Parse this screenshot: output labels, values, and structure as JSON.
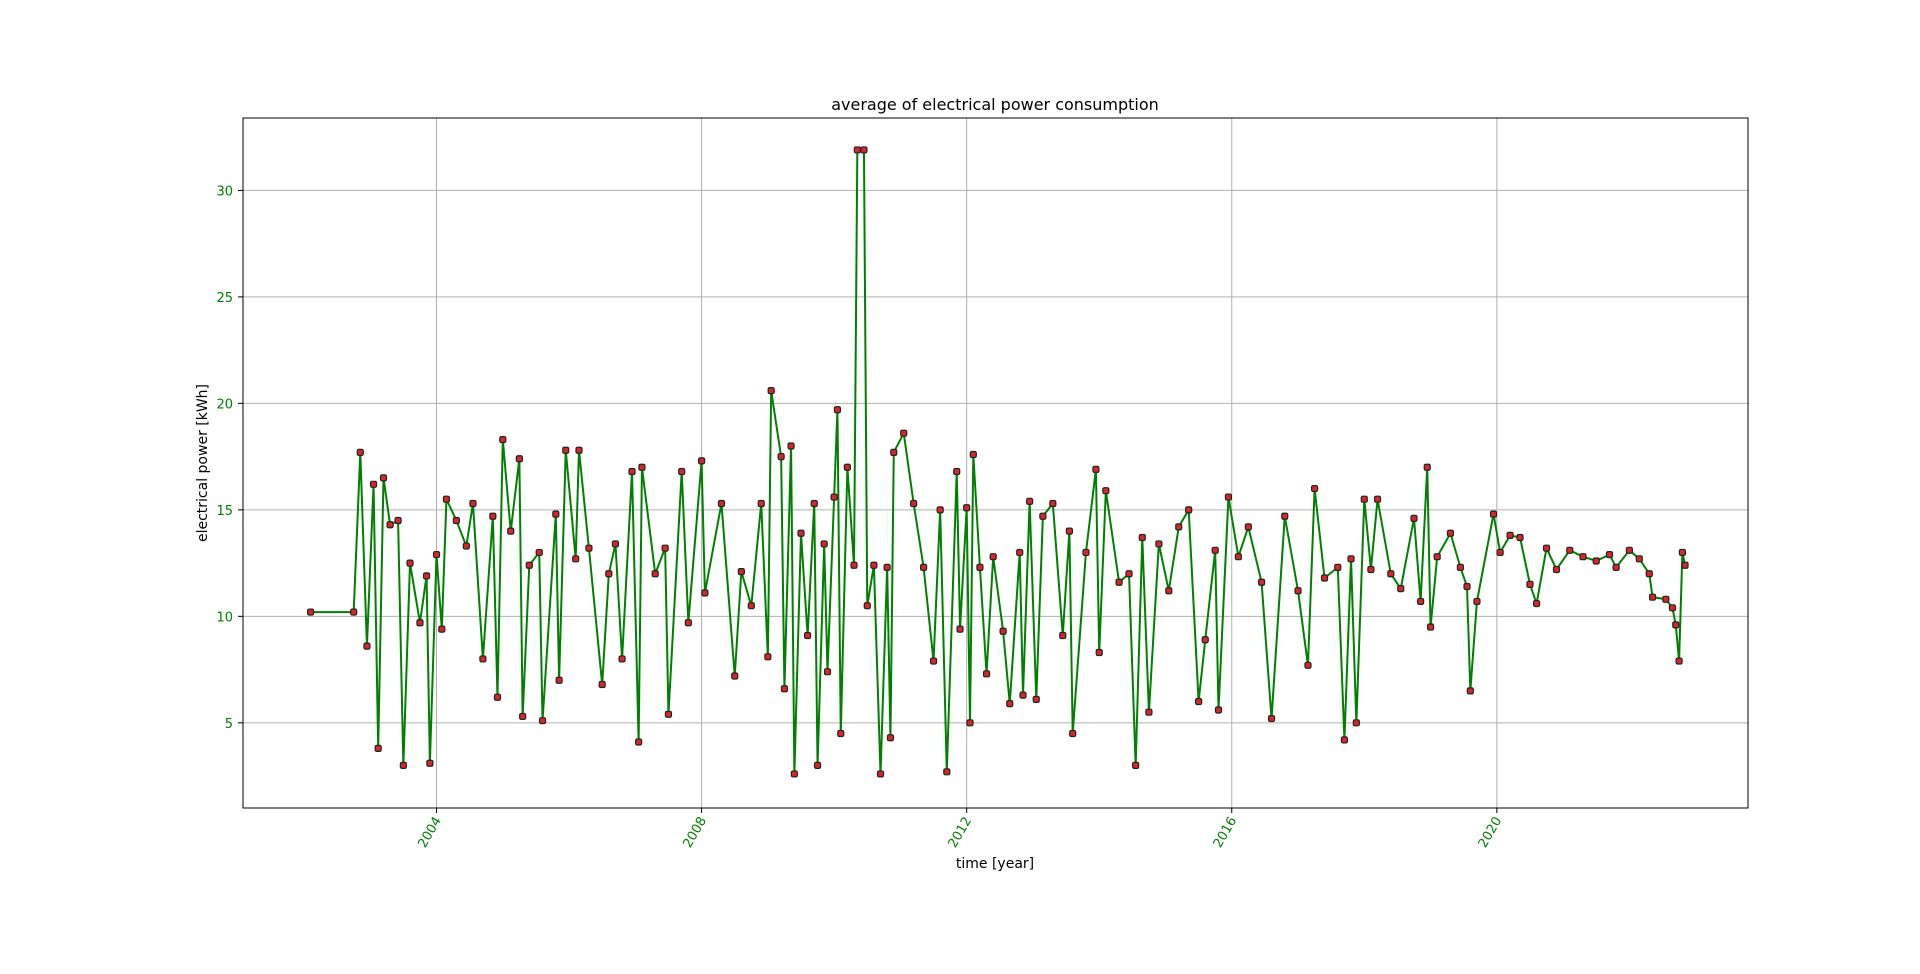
{
  "chart_data": {
    "type": "line",
    "title": "average of electrical power consumption",
    "xlabel": "time [year]",
    "ylabel": "electrical power [kWh]",
    "x": [
      2002.1,
      2002.75,
      2002.85,
      2002.95,
      2003.05,
      2003.12,
      2003.2,
      2003.3,
      2003.42,
      2003.5,
      2003.6,
      2003.75,
      2003.85,
      2003.9,
      2004.0,
      2004.08,
      2004.15,
      2004.3,
      2004.45,
      2004.55,
      2004.7,
      2004.85,
      2004.92,
      2005.0,
      2005.12,
      2005.25,
      2005.3,
      2005.4,
      2005.55,
      2005.6,
      2005.8,
      2005.85,
      2005.95,
      2006.1,
      2006.15,
      2006.3,
      2006.5,
      2006.6,
      2006.7,
      2006.8,
      2006.95,
      2007.05,
      2007.1,
      2007.3,
      2007.45,
      2007.5,
      2007.7,
      2007.8,
      2008.0,
      2008.05,
      2008.3,
      2008.5,
      2008.6,
      2008.75,
      2008.9,
      2009.0,
      2009.05,
      2009.2,
      2009.25,
      2009.35,
      2009.4,
      2009.5,
      2009.6,
      2009.7,
      2009.75,
      2009.85,
      2009.9,
      2010.0,
      2010.05,
      2010.1,
      2010.2,
      2010.3,
      2010.35,
      2010.45,
      2010.5,
      2010.6,
      2010.7,
      2010.8,
      2010.85,
      2010.9,
      2011.05,
      2011.2,
      2011.35,
      2011.5,
      2011.6,
      2011.7,
      2011.85,
      2011.9,
      2012.0,
      2012.05,
      2012.1,
      2012.2,
      2012.3,
      2012.4,
      2012.55,
      2012.65,
      2012.8,
      2012.85,
      2012.95,
      2013.05,
      2013.15,
      2013.3,
      2013.45,
      2013.55,
      2013.6,
      2013.8,
      2013.95,
      2014.0,
      2014.1,
      2014.3,
      2014.45,
      2014.55,
      2014.65,
      2014.75,
      2014.9,
      2015.05,
      2015.2,
      2015.35,
      2015.5,
      2015.6,
      2015.75,
      2015.8,
      2015.95,
      2016.1,
      2016.25,
      2016.45,
      2016.6,
      2016.8,
      2017.0,
      2017.15,
      2017.25,
      2017.4,
      2017.6,
      2017.7,
      2017.8,
      2017.88,
      2018.0,
      2018.1,
      2018.2,
      2018.4,
      2018.55,
      2018.75,
      2018.85,
      2018.95,
      2019.0,
      2019.1,
      2019.3,
      2019.45,
      2019.55,
      2019.6,
      2019.7,
      2019.95,
      2020.05,
      2020.2,
      2020.35,
      2020.5,
      2020.6,
      2020.75,
      2020.9,
      2021.1,
      2021.3,
      2021.5,
      2021.7,
      2021.8,
      2022.0,
      2022.15,
      2022.3,
      2022.35,
      2022.55,
      2022.65,
      2022.7,
      2022.75,
      2022.8,
      2022.84
    ],
    "values": [
      10.2,
      10.2,
      17.7,
      8.6,
      16.2,
      3.8,
      16.5,
      14.3,
      14.5,
      3.0,
      12.5,
      9.7,
      11.9,
      3.1,
      12.9,
      9.4,
      15.5,
      14.5,
      13.3,
      15.3,
      8.0,
      14.7,
      6.2,
      18.3,
      14.0,
      17.4,
      5.3,
      12.4,
      13.0,
      5.1,
      14.8,
      7.0,
      17.8,
      12.7,
      17.8,
      13.2,
      6.8,
      12.0,
      13.4,
      8.0,
      16.8,
      4.1,
      17.0,
      12.0,
      13.2,
      5.4,
      16.8,
      9.7,
      17.3,
      11.1,
      15.3,
      7.2,
      12.1,
      10.5,
      15.3,
      8.1,
      20.6,
      17.5,
      6.6,
      18.0,
      2.6,
      13.9,
      9.1,
      15.3,
      3.0,
      13.4,
      7.4,
      15.6,
      19.7,
      4.5,
      17.0,
      12.4,
      31.9,
      31.9,
      10.5,
      12.4,
      2.6,
      12.3,
      4.3,
      17.7,
      18.6,
      15.3,
      12.3,
      7.9,
      15.0,
      2.7,
      16.8,
      9.4,
      15.1,
      5.0,
      17.6,
      12.3,
      7.3,
      12.8,
      9.3,
      5.9,
      13.0,
      6.3,
      15.4,
      6.1,
      14.7,
      15.3,
      9.1,
      14.0,
      4.5,
      13.0,
      16.9,
      8.3,
      15.9,
      11.6,
      12.0,
      3.0,
      13.7,
      5.5,
      13.4,
      11.2,
      14.2,
      15.0,
      6.0,
      8.9,
      13.1,
      5.6,
      15.6,
      12.8,
      14.2,
      11.6,
      5.2,
      14.7,
      11.2,
      7.7,
      16.0,
      11.8,
      12.3,
      4.2,
      12.7,
      5.0,
      15.5,
      12.2,
      15.5,
      12.0,
      11.3,
      14.6,
      10.7,
      17.0,
      9.5,
      12.8,
      13.9,
      12.3,
      11.4,
      6.5,
      10.7,
      14.8,
      13.0,
      13.8,
      13.7,
      11.5,
      10.6,
      13.2,
      12.2,
      13.1,
      12.8,
      12.6,
      12.9,
      12.3,
      13.1,
      12.7,
      12.0,
      10.9,
      10.8,
      10.4,
      9.6,
      7.9,
      13.0,
      12.4
    ],
    "color": "#008000",
    "marker_color": "#d62728",
    "marker_edge": "#222222",
    "tick_color": "#008000",
    "xlim": [
      2001.08,
      2023.79
    ],
    "xticks": [
      2004,
      2008,
      2012,
      2016,
      2020
    ],
    "ylim": [
      1.0,
      33.4
    ],
    "yticks": [
      5,
      10,
      15,
      20,
      25,
      30
    ],
    "grid": true
  }
}
